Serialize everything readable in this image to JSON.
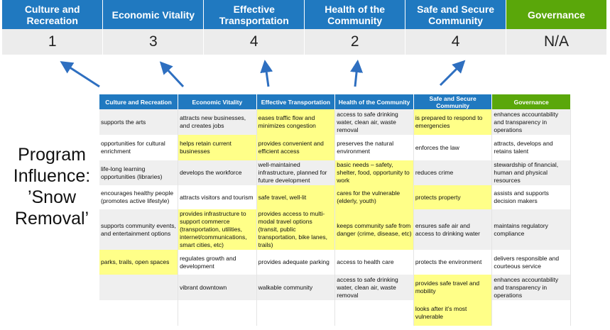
{
  "scores": {
    "headers": [
      "Culture and Recreation",
      "Economic Vitality",
      "Effective Transportation",
      "Health of the Community",
      "Safe and Secure Community",
      "Governance"
    ],
    "values": [
      "1",
      "3",
      "4",
      "2",
      "4",
      "N/A"
    ]
  },
  "title": "Program Influence: ’Snow Removal’",
  "colors": {
    "header_blue": "#2079c0",
    "governance_green": "#5aa70a",
    "highlight": "#ffff88",
    "arrow": "#2e6fc0"
  },
  "matrix": {
    "headers": [
      "Culture and Recreation",
      "Economic Vitality",
      "Effective Transportation",
      "Health of the Community",
      "Safe and Secure Community",
      "Governance"
    ],
    "rows": [
      [
        {
          "t": "supports the arts"
        },
        {
          "t": "attracts new businesses, and creates jobs"
        },
        {
          "t": "eases traffic flow and minimizes congestion",
          "hl": true
        },
        {
          "t": "access to safe drinking water, clean air, waste removal"
        },
        {
          "t": "is prepared to respond to emergencies",
          "hl": true
        },
        {
          "t": "enhances accountability and transparency in operations"
        }
      ],
      [
        {
          "t": "opportunities for cultural enrichment"
        },
        {
          "t": "helps retain current businesses",
          "hl": true
        },
        {
          "t": "provides convenient and efficient access",
          "hl": true
        },
        {
          "t": "preserves the natural environment"
        },
        {
          "t": "enforces the law"
        },
        {
          "t": "attracts, develops and retains talent"
        }
      ],
      [
        {
          "t": "life-long learning opportunities (libraries)"
        },
        {
          "t": "develops the workforce"
        },
        {
          "t": "well-maintained infrastructure, planned for future development"
        },
        {
          "t": "basic needs – safety, shelter, food, opportunity to work",
          "hl": true
        },
        {
          "t": "reduces crime"
        },
        {
          "t": "stewardship of financial, human and physical resources"
        }
      ],
      [
        {
          "t": "encourages healthy people (promotes active lifestyle)"
        },
        {
          "t": "attracts visitors and tourism"
        },
        {
          "t": "safe travel, well-lit",
          "hl": true
        },
        {
          "t": "cares for the vulnerable (elderly, youth)",
          "hl": true
        },
        {
          "t": "protects property",
          "hl": true
        },
        {
          "t": "assists and supports decision makers"
        }
      ],
      [
        {
          "t": "supports community events, and entertainment options"
        },
        {
          "t": "provides infrastructure to support commerce (transportation, utilities, internet/communications, smart cities, etc)",
          "hl": true
        },
        {
          "t": "provides access to multi-modal travel options (transit, public transportation, bike lanes, trails)",
          "hl": true
        },
        {
          "t": "keeps community safe from danger (crime, disease, etc)",
          "hl": true
        },
        {
          "t": "ensures safe air and access to drinking water"
        },
        {
          "t": "maintains regulatory compliance"
        }
      ],
      [
        {
          "t": "parks, trails, open spaces",
          "hl": true
        },
        {
          "t": "regulates growth and development"
        },
        {
          "t": "provides adequate parking"
        },
        {
          "t": "access to health care"
        },
        {
          "t": "protects the environment"
        },
        {
          "t": "delivers responsible and courteous service"
        }
      ],
      [
        {
          "t": ""
        },
        {
          "t": "vibrant downtown"
        },
        {
          "t": "walkable community"
        },
        {
          "t": "access to safe drinking water, clean air, waste removal"
        },
        {
          "t": "provides safe travel and mobility",
          "hl": true
        },
        {
          "t": "enhances accountability and transparency in operations"
        }
      ],
      [
        {
          "t": ""
        },
        {
          "t": ""
        },
        {
          "t": ""
        },
        {
          "t": ""
        },
        {
          "t": "looks after it’s most vulnerable",
          "hl": true
        },
        {
          "t": ""
        }
      ]
    ]
  }
}
